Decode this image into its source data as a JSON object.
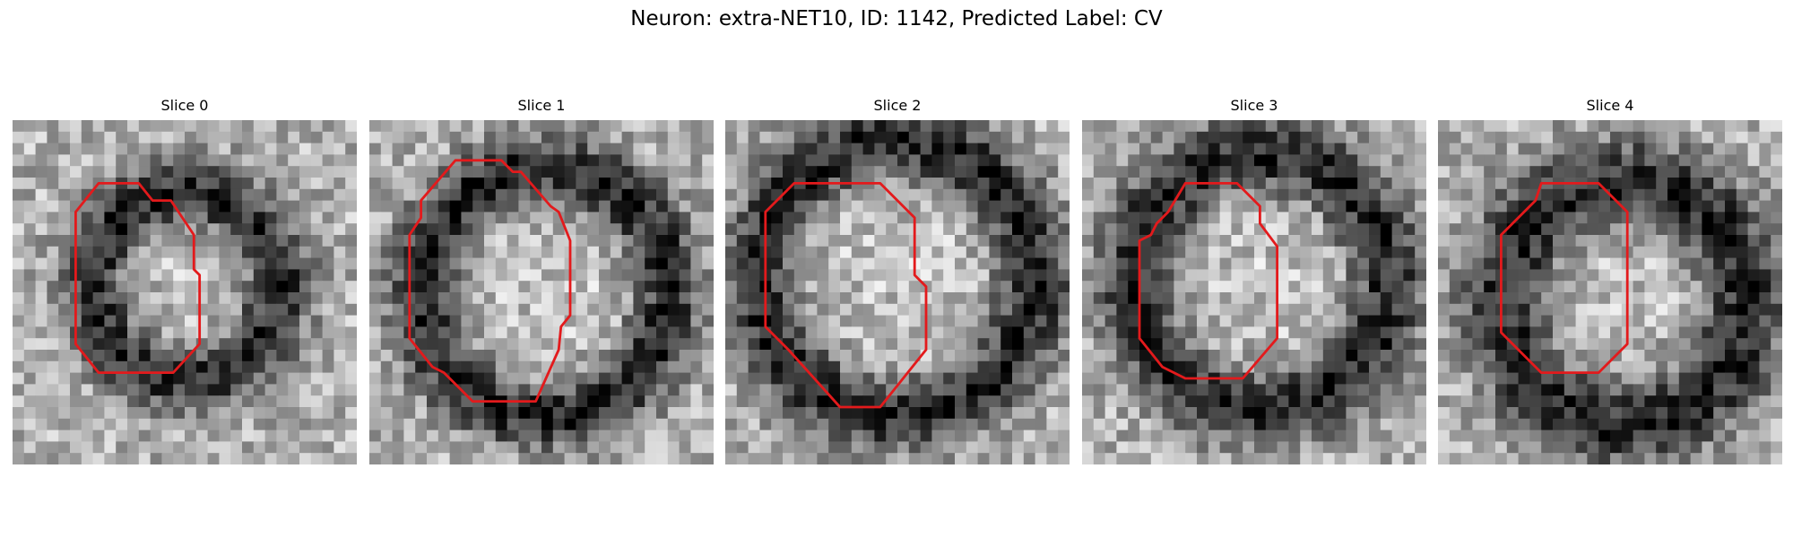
{
  "figure": {
    "title": "Neuron: extra-NET10, ID: 1142, Predicted Label: CV",
    "outline_color": "#e31a1c",
    "colormap": "gray"
  },
  "panels": [
    {
      "title": "Slice 0",
      "seed": 11,
      "ring": [
        0.5,
        0.48,
        0.27,
        0.1
      ],
      "outline": [
        [
          7.5,
          5.5
        ],
        [
          11,
          5.5
        ],
        [
          12.2,
          7
        ],
        [
          13.8,
          7
        ],
        [
          15.8,
          10
        ],
        [
          15.8,
          13
        ],
        [
          16.3,
          13.5
        ],
        [
          16.3,
          19.5
        ],
        [
          14,
          22
        ],
        [
          7.5,
          22
        ],
        [
          5.5,
          19.5
        ],
        [
          5.5,
          8
        ]
      ]
    },
    {
      "title": "Slice 1",
      "seed": 23,
      "ring": [
        0.51,
        0.5,
        0.36,
        0.1
      ],
      "outline": [
        [
          7.5,
          3.5
        ],
        [
          11.5,
          3.5
        ],
        [
          12.5,
          4.5
        ],
        [
          13.2,
          4.5
        ],
        [
          15.8,
          7.5
        ],
        [
          16.5,
          8
        ],
        [
          17.5,
          10.5
        ],
        [
          17.5,
          17
        ],
        [
          16.7,
          18
        ],
        [
          16.5,
          20
        ],
        [
          14.5,
          24.5
        ],
        [
          9,
          24.5
        ],
        [
          7.5,
          23
        ],
        [
          6.5,
          22
        ],
        [
          5.5,
          21.5
        ],
        [
          3.5,
          19
        ],
        [
          3.5,
          10
        ],
        [
          4.5,
          8.5
        ],
        [
          4.5,
          7
        ]
      ]
    },
    {
      "title": "Slice 2",
      "seed": 37,
      "ring": [
        0.5,
        0.46,
        0.4,
        0.11
      ],
      "outline": [
        [
          6,
          5.5
        ],
        [
          13.5,
          5.5
        ],
        [
          16.5,
          8.5
        ],
        [
          16.5,
          13.5
        ],
        [
          17.5,
          14.5
        ],
        [
          17.5,
          20
        ],
        [
          13.5,
          25
        ],
        [
          10,
          25
        ],
        [
          5.5,
          20
        ],
        [
          3.5,
          18
        ],
        [
          3.5,
          8
        ]
      ]
    },
    {
      "title": "Slice 3",
      "seed": 53,
      "ring": [
        0.52,
        0.47,
        0.37,
        0.11
      ],
      "outline": [
        [
          9,
          5.5
        ],
        [
          13.5,
          5.5
        ],
        [
          15.5,
          7.5
        ],
        [
          15.5,
          9
        ],
        [
          17,
          11
        ],
        [
          17,
          19
        ],
        [
          14,
          22.5
        ],
        [
          9,
          22.5
        ],
        [
          8,
          22
        ],
        [
          7,
          21.5
        ],
        [
          5,
          19
        ],
        [
          5,
          10.5
        ],
        [
          6,
          10
        ],
        [
          6.5,
          9
        ],
        [
          7.5,
          8
        ]
      ]
    },
    {
      "title": "Slice 4",
      "seed": 71,
      "ring": [
        0.54,
        0.53,
        0.35,
        0.13
      ],
      "outline": [
        [
          9,
          5.5
        ],
        [
          14,
          5.5
        ],
        [
          16.5,
          8
        ],
        [
          16.5,
          19.5
        ],
        [
          14,
          22
        ],
        [
          9,
          22
        ],
        [
          5.5,
          18.5
        ],
        [
          5.5,
          10
        ],
        [
          8,
          7.5
        ],
        [
          8.5,
          7
        ]
      ]
    }
  ]
}
